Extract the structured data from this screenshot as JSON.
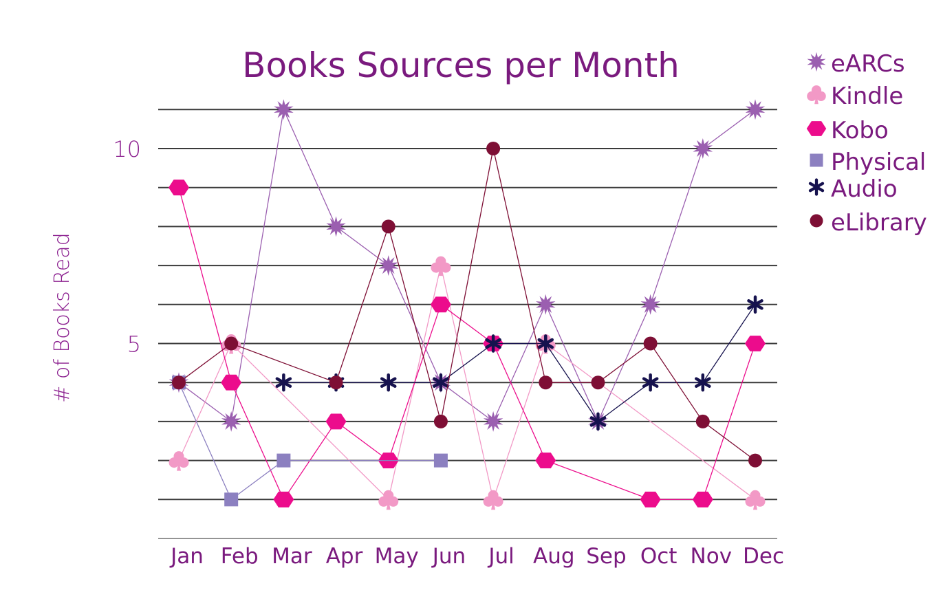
{
  "chart_data": {
    "type": "line",
    "title": "Books Sources per Month",
    "ylabel": "# of Books Read",
    "xlabel": "",
    "categories": [
      "Jan",
      "Feb",
      "Mar",
      "Apr",
      "May",
      "Jun",
      "Jul",
      "Aug",
      "Sep",
      "Oct",
      "Nov",
      "Dec"
    ],
    "ylim": [
      0,
      11
    ],
    "yticks": [
      5,
      10
    ],
    "grid": true,
    "legend_position": "right",
    "series": [
      {
        "name": "eARCs",
        "marker": "star",
        "color": "#9b5fb0",
        "values": [
          4,
          3,
          11,
          8,
          7,
          4,
          3,
          6,
          3,
          6,
          10,
          11
        ]
      },
      {
        "name": "Kindle",
        "marker": "club",
        "color": "#f299c6",
        "values": [
          2,
          5,
          null,
          null,
          1,
          7,
          1,
          5,
          null,
          null,
          null,
          1
        ]
      },
      {
        "name": "Kobo",
        "marker": "hexagon",
        "color": "#ec0c8c",
        "values": [
          9,
          4,
          1,
          3,
          2,
          6,
          5,
          2,
          null,
          1,
          1,
          5
        ]
      },
      {
        "name": "Physical",
        "marker": "square",
        "color": "#8c80c0",
        "values": [
          4,
          1,
          2,
          null,
          null,
          2,
          null,
          null,
          null,
          null,
          null,
          null
        ]
      },
      {
        "name": "Audio",
        "marker": "asterisk",
        "color": "#16124e",
        "values": [
          null,
          null,
          4,
          4,
          4,
          4,
          5,
          5,
          3,
          4,
          4,
          6
        ]
      },
      {
        "name": "eLibrary",
        "marker": "circle",
        "color": "#7e0f35",
        "values": [
          4,
          5,
          null,
          4,
          8,
          3,
          10,
          4,
          4,
          5,
          3,
          2
        ]
      }
    ]
  }
}
